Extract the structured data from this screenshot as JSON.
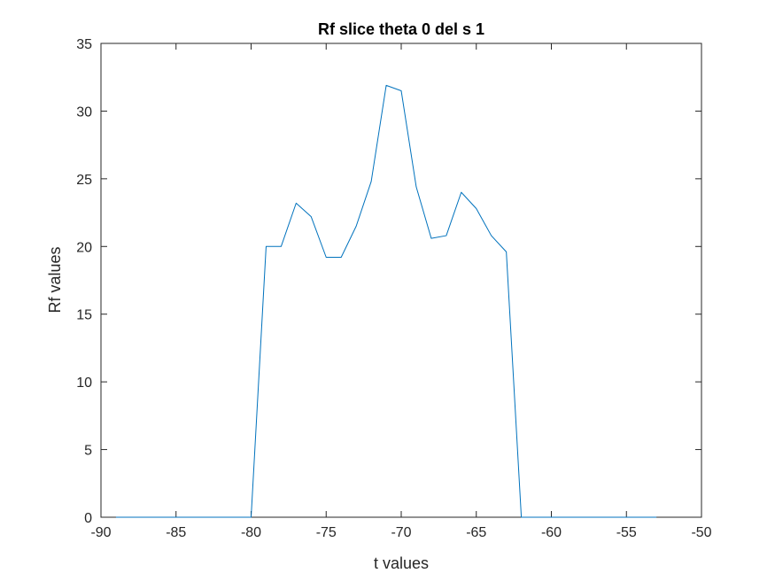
{
  "chart_data": {
    "type": "line",
    "title": "Rf slice theta 0 del s 1",
    "xlabel": "t values",
    "ylabel": "Rf values",
    "xlim": [
      -90,
      -50
    ],
    "ylim": [
      0,
      35
    ],
    "xticks": [
      -90,
      -85,
      -80,
      -75,
      -70,
      -65,
      -60,
      -55,
      -50
    ],
    "yticks": [
      0,
      5,
      10,
      15,
      20,
      25,
      30,
      35
    ],
    "grid": false,
    "legend": "none",
    "series": [
      {
        "color": "#0072BD",
        "x": [
          -89,
          -88,
          -87,
          -86,
          -85,
          -84,
          -83,
          -82,
          -81,
          -80,
          -79,
          -78,
          -77,
          -76,
          -75,
          -74,
          -73,
          -72,
          -71,
          -70,
          -69,
          -68,
          -67,
          -66,
          -65,
          -64,
          -63,
          -62,
          -61,
          -60,
          -59,
          -58,
          -57,
          -56,
          -55,
          -54,
          -53
        ],
        "y": [
          0,
          0,
          0,
          0,
          0,
          0,
          0,
          0,
          0,
          0,
          20,
          20,
          23.2,
          22.2,
          19.2,
          19.2,
          21.5,
          24.8,
          31.9,
          31.5,
          24.4,
          20.6,
          20.8,
          24.0,
          22.8,
          20.8,
          19.6,
          0,
          0,
          0,
          0,
          0,
          0,
          0,
          0,
          0,
          0
        ]
      }
    ]
  }
}
